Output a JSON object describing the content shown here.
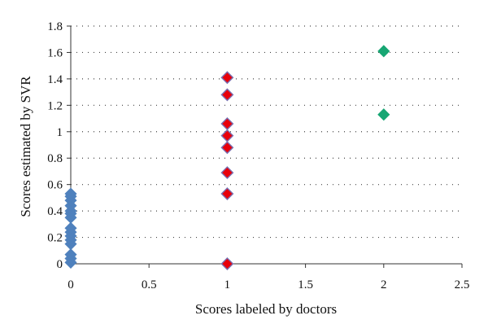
{
  "chart_data": {
    "type": "scatter",
    "title": "",
    "xlabel": "Scores labeled by doctors",
    "ylabel": "Scores estimated by SVR",
    "xlim": [
      0,
      2.5
    ],
    "ylim": [
      0,
      1.8
    ],
    "x_ticks": [
      "0",
      "0.5",
      "1",
      "1.5",
      "2",
      "2.5"
    ],
    "y_ticks": [
      "0",
      "0.2",
      "0.4",
      "0.6",
      "0.8",
      "1",
      "1.2",
      "1.4",
      "1.6",
      "1.8"
    ],
    "grid": "horizontal dotted",
    "legend": "none",
    "series": [
      {
        "color": "#4f81bd",
        "marker": "diamond",
        "points": [
          {
            "x": 0,
            "y": 0.01
          },
          {
            "x": 0,
            "y": 0.04
          },
          {
            "x": 0,
            "y": 0.07
          },
          {
            "x": 0,
            "y": 0.15
          },
          {
            "x": 0,
            "y": 0.18
          },
          {
            "x": 0,
            "y": 0.21
          },
          {
            "x": 0,
            "y": 0.24
          },
          {
            "x": 0,
            "y": 0.27
          },
          {
            "x": 0,
            "y": 0.35
          },
          {
            "x": 0,
            "y": 0.38
          },
          {
            "x": 0,
            "y": 0.4
          },
          {
            "x": 0,
            "y": 0.44
          },
          {
            "x": 0,
            "y": 0.48
          },
          {
            "x": 0,
            "y": 0.51
          },
          {
            "x": 0,
            "y": 0.53
          }
        ]
      },
      {
        "color": "#e8000b",
        "marker": "diamond",
        "points": [
          {
            "x": 1,
            "y": 0.0
          },
          {
            "x": 1,
            "y": 0.53
          },
          {
            "x": 1,
            "y": 0.69
          },
          {
            "x": 1,
            "y": 0.88
          },
          {
            "x": 1,
            "y": 0.97
          },
          {
            "x": 1,
            "y": 1.06
          },
          {
            "x": 1,
            "y": 1.28
          },
          {
            "x": 1,
            "y": 1.41
          }
        ]
      },
      {
        "color": "#17a673",
        "marker": "diamond",
        "points": [
          {
            "x": 2,
            "y": 1.13
          },
          {
            "x": 2,
            "y": 1.61
          }
        ]
      }
    ]
  }
}
